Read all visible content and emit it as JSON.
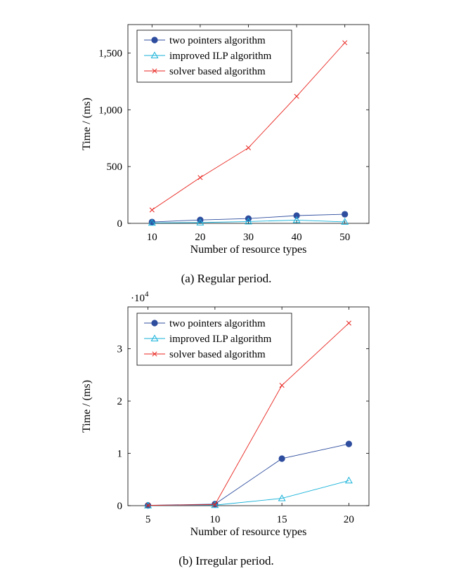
{
  "chart_data": [
    {
      "type": "line",
      "caption": "(a) Regular period.",
      "xlabel": "Number of resource types",
      "ylabel": "Time / (ms)",
      "x": [
        10,
        20,
        30,
        40,
        50
      ],
      "xlim": [
        5,
        55
      ],
      "ylim": [
        0,
        1750
      ],
      "xticks": [
        10,
        20,
        30,
        40,
        50
      ],
      "yticks": [
        0,
        500,
        1000,
        1500
      ],
      "ytick_labels": [
        "0",
        "500",
        "1,000",
        "1,500"
      ],
      "legend_position": "top-left",
      "grid": false,
      "series": [
        {
          "name": "two pointers algorithm",
          "color": "#2e4d9e",
          "marker": "circle",
          "values": [
            12,
            30,
            42,
            68,
            80
          ]
        },
        {
          "name": "improved ILP algorithm",
          "color": "#17b2d9",
          "marker": "triangle",
          "values": [
            4,
            7,
            16,
            28,
            13
          ]
        },
        {
          "name": "solver based algorithm",
          "color": "#e8251f",
          "marker": "x",
          "values": [
            118,
            403,
            665,
            1118,
            1590
          ]
        }
      ]
    },
    {
      "type": "line",
      "caption": "(b) Irregular period.",
      "xlabel": "Number of resource types",
      "ylabel": "Time / (ms)",
      "y_scale_note": "·10",
      "y_scale_exp": "4",
      "x": [
        5,
        10,
        15,
        20
      ],
      "xlim": [
        3.5,
        21.5
      ],
      "ylim": [
        0,
        3.8
      ],
      "xticks": [
        5,
        10,
        15,
        20
      ],
      "yticks": [
        0,
        1,
        2,
        3
      ],
      "ytick_labels": [
        "0",
        "1",
        "2",
        "3"
      ],
      "legend_position": "top-left",
      "grid": false,
      "series": [
        {
          "name": "two pointers algorithm",
          "color": "#2e4d9e",
          "marker": "circle",
          "values": [
            0.005,
            0.03,
            0.9,
            1.18
          ]
        },
        {
          "name": "improved ILP algorithm",
          "color": "#17b2d9",
          "marker": "triangle",
          "values": [
            0.002,
            0.01,
            0.14,
            0.48
          ]
        },
        {
          "name": "solver based algorithm",
          "color": "#e8251f",
          "marker": "x",
          "values": [
            0.005,
            0.02,
            2.3,
            3.49
          ]
        }
      ]
    }
  ]
}
